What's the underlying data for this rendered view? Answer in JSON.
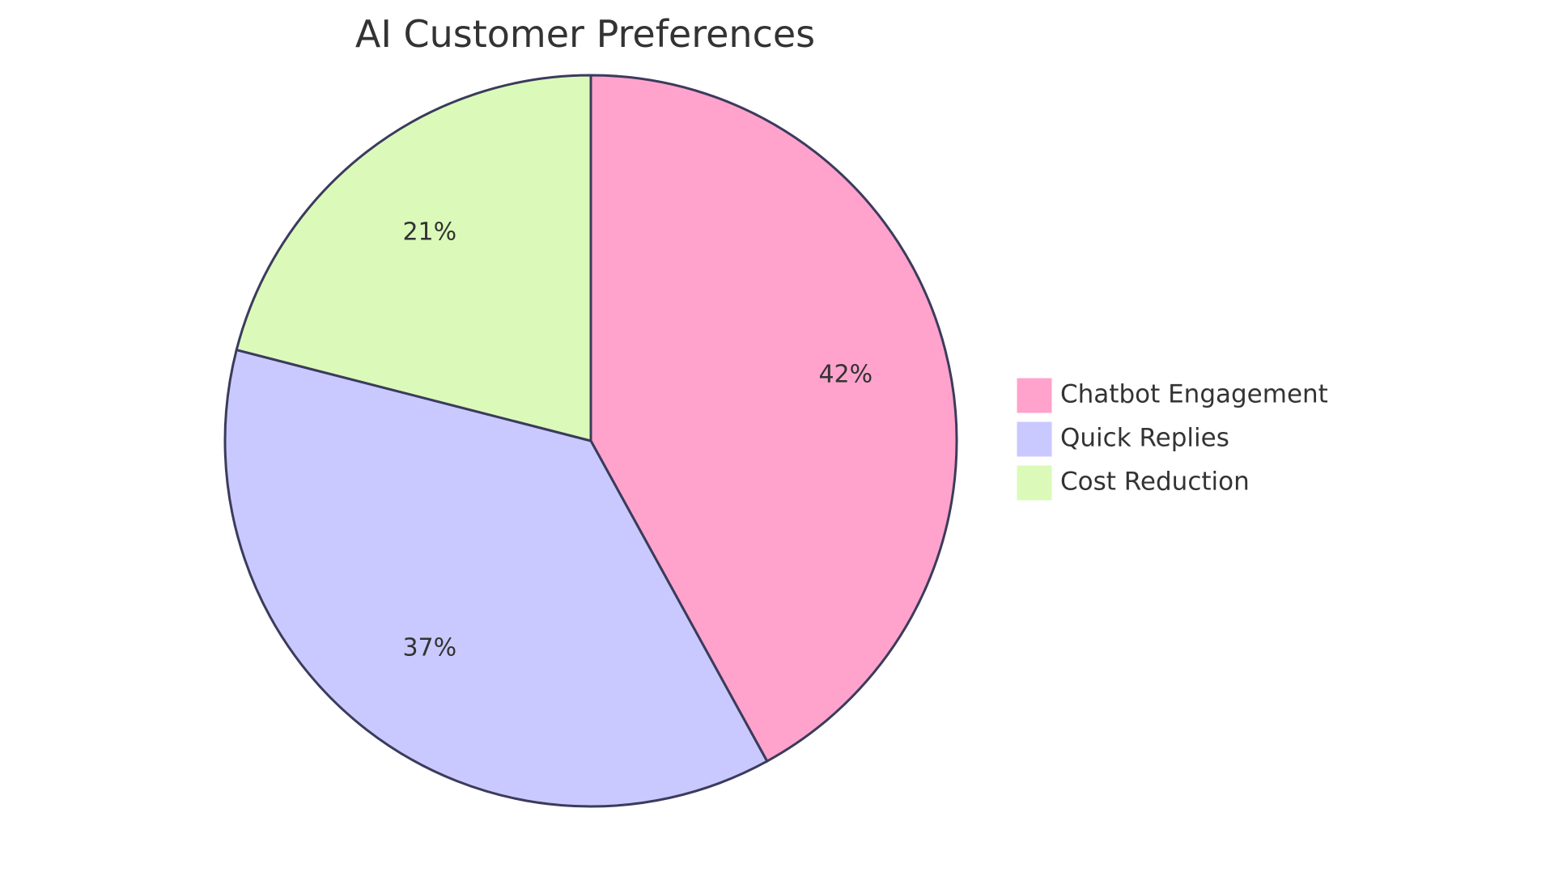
{
  "chart_data": {
    "type": "pie",
    "title": "AI Customer Preferences",
    "slices": [
      {
        "label": "Chatbot Engagement",
        "value": 42,
        "display": "42%",
        "color": "#FFA3CC"
      },
      {
        "label": "Quick Replies",
        "value": 37,
        "display": "37%",
        "color": "#C9C9FF"
      },
      {
        "label": "Cost Reduction",
        "value": 21,
        "display": "21%",
        "color": "#DBFABA"
      }
    ],
    "stroke_color": "#3B3B5C",
    "legend": "right"
  }
}
